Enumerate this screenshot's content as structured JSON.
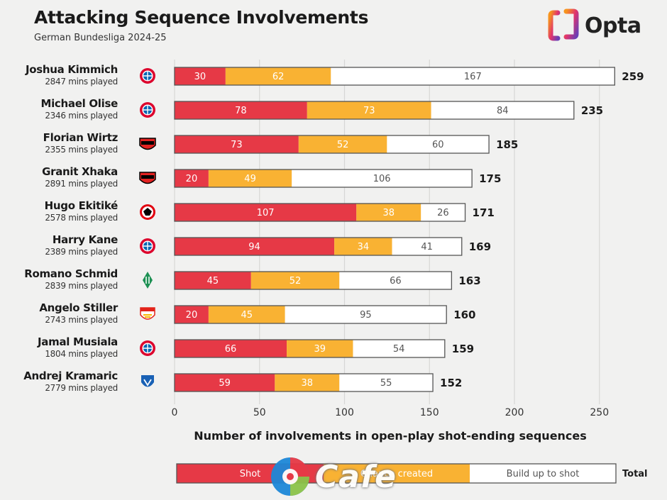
{
  "header": {
    "title": "Attacking Sequence Involvements",
    "subtitle": "German Bundesliga 2024-25",
    "brand": "Opta"
  },
  "colors": {
    "shot": "#e63946",
    "chance": "#f9b233",
    "buildup": "#ffffff",
    "bar_border": "#555555"
  },
  "chart_data": {
    "type": "bar",
    "orientation": "horizontal",
    "stacked": true,
    "categories": [
      "Joshua Kimmich",
      "Michael Olise",
      "Florian Wirtz",
      "Granit Xhaka",
      "Hugo Ekitiké",
      "Harry Kane",
      "Romano Schmid",
      "Angelo Stiller",
      "Jamal Musiala",
      "Andrej Kramaric"
    ],
    "minutes": [
      "2847 mins played",
      "2346 mins played",
      "2355 mins played",
      "2891 mins played",
      "2578 mins played",
      "2389 mins played",
      "2839 mins played",
      "2743 mins played",
      "1804 mins played",
      "2779 mins played"
    ],
    "clubs": [
      "bayern-icon",
      "bayern-icon",
      "leverkusen-icon",
      "leverkusen-icon",
      "frankfurt-icon",
      "bayern-icon",
      "bremen-icon",
      "stuttgart-icon",
      "bayern-icon",
      "hoffenheim-icon"
    ],
    "series": [
      {
        "name": "Shot",
        "values": [
          30,
          78,
          73,
          20,
          107,
          94,
          45,
          20,
          66,
          59
        ]
      },
      {
        "name": "Chance created",
        "values": [
          62,
          73,
          52,
          49,
          38,
          34,
          52,
          45,
          39,
          38
        ]
      },
      {
        "name": "Build up to shot",
        "values": [
          167,
          84,
          60,
          106,
          26,
          41,
          66,
          95,
          54,
          55
        ]
      }
    ],
    "totals": [
      259,
      235,
      185,
      175,
      171,
      169,
      163,
      160,
      159,
      152
    ],
    "xlabel": "Number of involvements in open-play shot-ending sequences",
    "xlim": [
      0,
      260
    ],
    "xticks": [
      0,
      50,
      100,
      150,
      200,
      250
    ],
    "legend": {
      "position": "bottom",
      "total_label": "Total"
    }
  },
  "watermark": "Cafe"
}
